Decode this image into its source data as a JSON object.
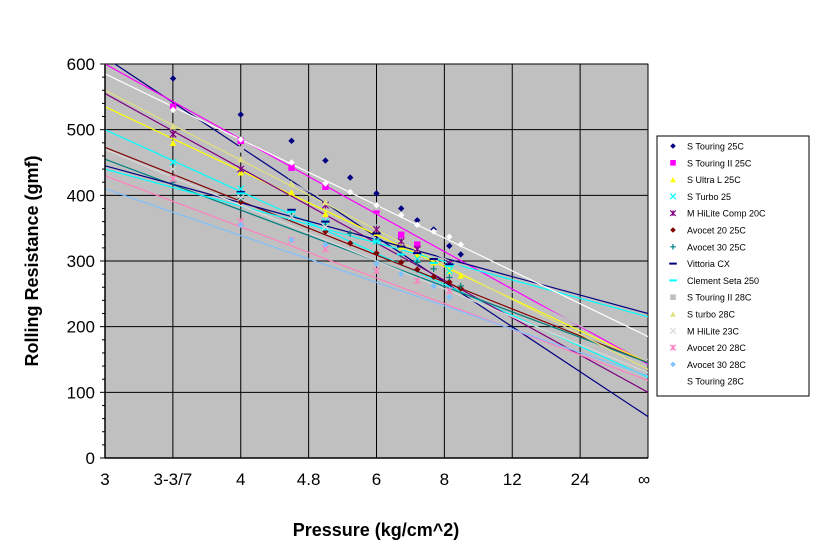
{
  "chart_data": {
    "type": "scatter",
    "title": "",
    "xlabel": "Pressure (kg/cm^2)",
    "ylabel": "Rolling Resistance (gmf)",
    "x_scale": "reciprocal",
    "xlim": [
      3,
      "∞"
    ],
    "ylim": [
      0,
      600
    ],
    "y_ticks": [
      0,
      100,
      200,
      300,
      400,
      500,
      600
    ],
    "x_ticks": [
      {
        "label": "3",
        "value": 3
      },
      {
        "label": "3-3/7",
        "value": 3.4286
      },
      {
        "label": "4",
        "value": 4
      },
      {
        "label": "4.8",
        "value": 4.8
      },
      {
        "label": "6",
        "value": 6
      },
      {
        "label": "8",
        "value": 8
      },
      {
        "label": "12",
        "value": 12
      },
      {
        "label": "24",
        "value": 24
      },
      {
        "label": "∞",
        "value": null
      }
    ],
    "grid": true,
    "legend_position": "right",
    "plot_background": "#c0c0c0",
    "series": [
      {
        "name": "S Touring 25C",
        "color": "#000080",
        "marker": "diamond",
        "points": [
          [
            3.43,
            578
          ],
          [
            4,
            523
          ],
          [
            4.57,
            483
          ],
          [
            5.05,
            453
          ],
          [
            5.47,
            427
          ],
          [
            6,
            403
          ],
          [
            6.6,
            380
          ],
          [
            7.06,
            362
          ],
          [
            7.6,
            348
          ],
          [
            8.2,
            323
          ],
          [
            8.7,
            310
          ]
        ],
        "fit": [
          610,
          63
        ]
      },
      {
        "name": "S Touring II 25C",
        "color": "#ff00ff",
        "marker": "square",
        "points": [
          [
            3.43,
            535
          ],
          [
            4,
            483
          ],
          [
            4.57,
            442
          ],
          [
            5.05,
            413
          ],
          [
            6,
            377
          ],
          [
            6.6,
            340
          ],
          [
            7.06,
            325
          ]
        ],
        "fit": [
          600,
          143
        ]
      },
      {
        "name": "S Ultra L 25C",
        "color": "#ffff00",
        "marker": "triangle",
        "points": [
          [
            3.43,
            480
          ],
          [
            4,
            435
          ],
          [
            4.57,
            405
          ],
          [
            5.05,
            372
          ],
          [
            6,
            343
          ],
          [
            6.6,
            322
          ],
          [
            7.06,
            310
          ],
          [
            7.6,
            298
          ],
          [
            8.2,
            285
          ],
          [
            8.7,
            278
          ]
        ],
        "fit": [
          535,
          145
        ]
      },
      {
        "name": "S Turbo 25",
        "color": "#00ffff",
        "marker": "x",
        "points": [
          [
            3.43,
            450
          ],
          [
            4,
            410
          ],
          [
            5.05,
            360
          ],
          [
            6,
            330
          ],
          [
            7.06,
            303
          ],
          [
            8.2,
            285
          ]
        ],
        "fit": [
          500,
          123
        ]
      },
      {
        "name": "M HiLite Comp 20C",
        "color": "#800080",
        "marker": "star",
        "points": [
          [
            3.43,
            493
          ],
          [
            4,
            440
          ],
          [
            5.05,
            385
          ],
          [
            6,
            348
          ],
          [
            6.6,
            330
          ],
          [
            7.06,
            318
          ],
          [
            8.2,
            296
          ]
        ],
        "fit": [
          555,
          100
        ]
      },
      {
        "name": "Avocet 20 25C",
        "color": "#800000",
        "marker": "circle",
        "points": [
          [
            4,
            390
          ],
          [
            5.05,
            345
          ],
          [
            5.47,
            327
          ],
          [
            6,
            312
          ],
          [
            6.6,
            298
          ],
          [
            7.06,
            287
          ],
          [
            7.6,
            276
          ],
          [
            8.2,
            268
          ],
          [
            8.7,
            258
          ]
        ],
        "fit": [
          473,
          145
        ]
      },
      {
        "name": "Avocet 30 25C",
        "color": "#008080",
        "marker": "plus",
        "points": [
          [
            3.43,
            420
          ],
          [
            4,
            395
          ],
          [
            4.57,
            370
          ],
          [
            5.05,
            355
          ],
          [
            5.47,
            342
          ],
          [
            6,
            330
          ],
          [
            6.6,
            310
          ],
          [
            7.06,
            298
          ],
          [
            7.6,
            288
          ],
          [
            8.2,
            275
          ],
          [
            8.7,
            262
          ]
        ],
        "fit": [
          455,
          145
        ]
      },
      {
        "name": "Vittoria CX",
        "color": "#000080",
        "marker": "dash",
        "points": [
          [
            4,
            405
          ],
          [
            4.57,
            378
          ],
          [
            5.05,
            360
          ],
          [
            6,
            342
          ],
          [
            6.6,
            322
          ],
          [
            7.06,
            312
          ],
          [
            7.6,
            303
          ],
          [
            8.2,
            295
          ]
        ],
        "fit": [
          445,
          220
        ]
      },
      {
        "name": "Clement Seta 250",
        "color": "#00ffff",
        "marker": "dash",
        "points": [
          [
            4,
            403
          ],
          [
            4.57,
            375
          ],
          [
            5.05,
            348
          ],
          [
            6,
            330
          ],
          [
            6.6,
            310
          ],
          [
            7.6,
            297
          ],
          [
            8.2,
            292
          ]
        ],
        "fit": [
          440,
          215
        ]
      },
      {
        "name": "S Touring II 28C",
        "color": "#c0c0c0",
        "marker": "square",
        "points": [
          [
            4,
            470
          ],
          [
            4.57,
            430
          ],
          [
            6,
            382
          ]
        ],
        "fit": [
          560,
          150
        ]
      },
      {
        "name": "S turbo 28C",
        "color": "#e0e080",
        "marker": "triangle",
        "points": [
          [
            3.43,
            505
          ],
          [
            4,
            455
          ],
          [
            4.57,
            418
          ],
          [
            5.05,
            390
          ]
        ],
        "fit": [
          560,
          135
        ]
      },
      {
        "name": "M HiLite 23C",
        "color": "#d8d8d8",
        "marker": "x",
        "points": [
          [
            3.43,
            440
          ],
          [
            4,
            396
          ],
          [
            4.57,
            368
          ],
          [
            5.05,
            352
          ]
        ],
        "fit": [
          470,
          130
        ]
      },
      {
        "name": "Avocet 20 28C",
        "color": "#ff80c0",
        "marker": "star",
        "points": [
          [
            3.43,
            425
          ],
          [
            4,
            360
          ],
          [
            4.57,
            332
          ],
          [
            5.05,
            318
          ],
          [
            6,
            285
          ],
          [
            7.06,
            270
          ],
          [
            8.2,
            255
          ]
        ],
        "fit": [
          430,
          118
        ]
      },
      {
        "name": "Avocet 30 28C",
        "color": "#80c0ff",
        "marker": "diamond",
        "points": [
          [
            4,
            355
          ],
          [
            4.57,
            332
          ],
          [
            5.05,
            325
          ],
          [
            6,
            296
          ],
          [
            6.6,
            280
          ],
          [
            7.6,
            262
          ],
          [
            8.2,
            245
          ]
        ],
        "fit": [
          410,
          125
        ]
      },
      {
        "name": "S Touring 28C",
        "color": "#ffffff",
        "marker": "circle",
        "points": [
          [
            3.43,
            530
          ],
          [
            4,
            485
          ],
          [
            4.57,
            450
          ],
          [
            5.05,
            418
          ],
          [
            5.47,
            405
          ],
          [
            6,
            385
          ],
          [
            6.6,
            370
          ],
          [
            7.06,
            355
          ],
          [
            7.6,
            345
          ],
          [
            8.2,
            337
          ],
          [
            8.7,
            325
          ]
        ],
        "fit": [
          585,
          185
        ]
      }
    ]
  }
}
